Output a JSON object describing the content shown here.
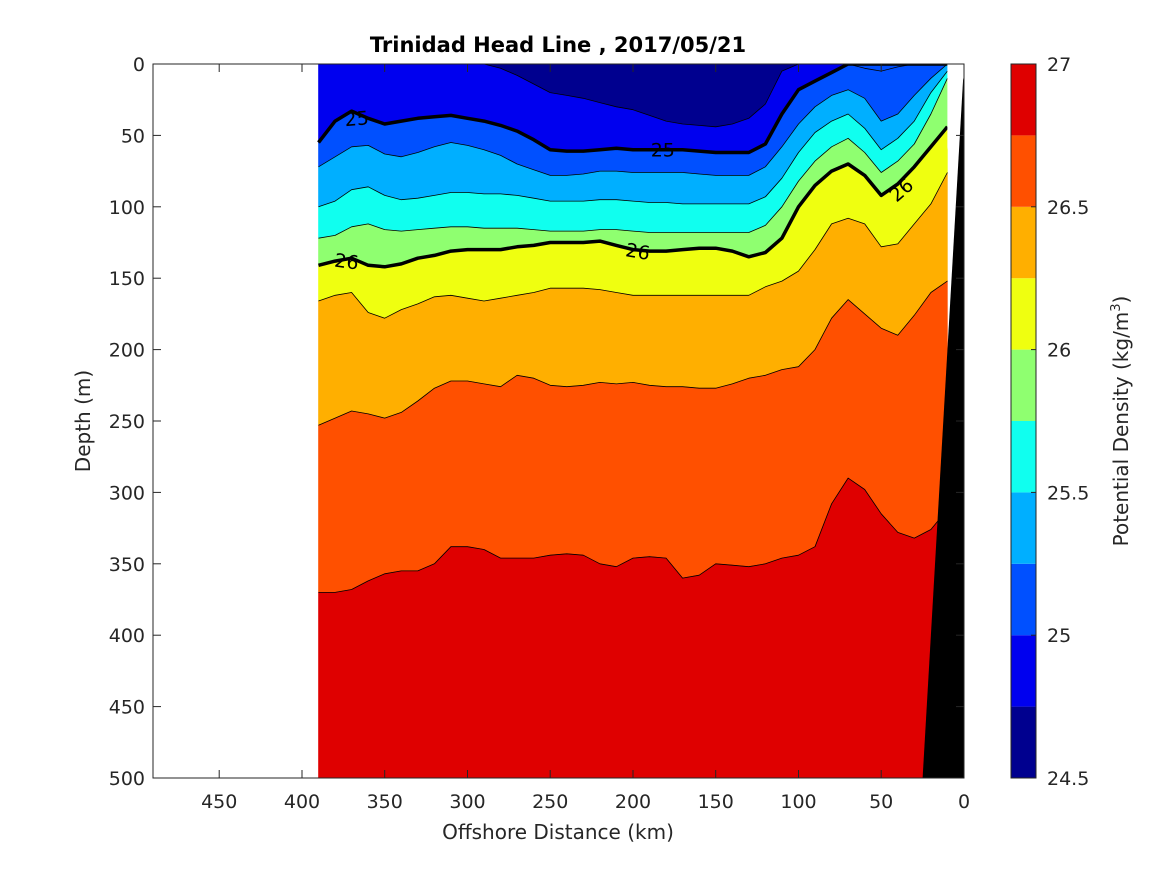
{
  "chart_data": {
    "type": "contourf",
    "title": "Trinidad Head Line , 2017/05/21",
    "xlabel": "Offshore Distance (km)",
    "ylabel": "Depth (m)",
    "colorbar_label": "Potential Density (kg/m",
    "colorbar_label_sup": "3",
    "colorbar_label_end": ")",
    "xlim": [
      490,
      0
    ],
    "ylim": [
      0,
      500
    ],
    "x_reversed": true,
    "y_reversed": true,
    "x_ticks": [
      450,
      400,
      350,
      300,
      250,
      200,
      150,
      100,
      50,
      0
    ],
    "y_ticks": [
      0,
      50,
      100,
      150,
      200,
      250,
      300,
      350,
      400,
      450,
      500
    ],
    "colorbar_ticks": [
      24.5,
      25,
      25.5,
      26,
      26.5,
      27
    ],
    "clim": [
      24.5,
      27
    ],
    "levels": [
      24.5,
      24.75,
      25,
      25.25,
      25.5,
      25.75,
      26,
      26.25,
      26.5,
      26.75,
      27
    ],
    "band_colors": [
      "#00008f",
      "#0000ef",
      "#0050ff",
      "#00afff",
      "#10ffef",
      "#8fff70",
      "#efff10",
      "#ffaf00",
      "#ff5000",
      "#df0000"
    ],
    "data_x_range": [
      390,
      10
    ],
    "bathymetry": {
      "color": "#000000",
      "surface_x": 0,
      "bottom_x": 25
    },
    "contour_x": [
      390,
      380,
      370,
      360,
      350,
      340,
      330,
      320,
      310,
      300,
      290,
      280,
      270,
      260,
      250,
      240,
      230,
      220,
      210,
      200,
      190,
      180,
      170,
      160,
      150,
      140,
      130,
      120,
      110,
      100,
      90,
      80,
      70,
      60,
      50,
      40,
      30,
      20,
      10
    ],
    "contours": [
      {
        "level": 24.75,
        "depths": [
          0,
          0,
          0,
          0,
          0,
          0,
          0,
          0,
          0,
          0,
          0,
          3,
          8,
          14,
          20,
          22,
          24,
          27,
          30,
          32,
          36,
          40,
          42,
          43,
          44,
          42,
          38,
          28,
          5,
          0,
          0,
          0,
          0,
          3,
          5,
          2,
          0,
          0,
          0
        ]
      },
      {
        "level": 25,
        "depths": [
          55,
          40,
          33,
          38,
          42,
          40,
          38,
          37,
          36,
          38,
          40,
          43,
          47,
          53,
          60,
          61,
          61,
          60,
          59,
          60,
          60,
          60,
          60,
          61,
          62,
          62,
          62,
          56,
          35,
          18,
          12,
          6,
          0,
          0,
          0,
          0,
          0,
          0,
          0
        ]
      },
      {
        "level": 25.25,
        "depths": [
          72,
          65,
          58,
          57,
          63,
          65,
          62,
          58,
          55,
          57,
          60,
          64,
          70,
          74,
          78,
          78,
          77,
          75,
          75,
          76,
          76,
          76,
          76,
          77,
          78,
          78,
          78,
          72,
          58,
          42,
          30,
          22,
          18,
          24,
          40,
          35,
          22,
          10,
          0
        ]
      },
      {
        "level": 25.5,
        "depths": [
          100,
          96,
          88,
          86,
          92,
          95,
          94,
          92,
          90,
          90,
          91,
          91,
          92,
          94,
          96,
          96,
          96,
          95,
          95,
          96,
          97,
          97,
          98,
          98,
          98,
          98,
          98,
          93,
          80,
          62,
          48,
          40,
          35,
          45,
          60,
          52,
          40,
          20,
          5
        ]
      },
      {
        "level": 25.75,
        "depths": [
          122,
          120,
          114,
          112,
          116,
          117,
          116,
          115,
          114,
          114,
          115,
          115,
          115,
          116,
          117,
          117,
          117,
          116,
          116,
          117,
          118,
          118,
          118,
          118,
          118,
          118,
          118,
          113,
          100,
          82,
          68,
          58,
          52,
          62,
          76,
          68,
          56,
          35,
          10
        ]
      },
      {
        "level": 26,
        "depths": [
          141,
          138,
          136,
          141,
          142,
          140,
          136,
          134,
          131,
          130,
          130,
          130,
          128,
          127,
          125,
          125,
          125,
          124,
          127,
          130,
          131,
          131,
          130,
          129,
          129,
          131,
          135,
          132,
          122,
          100,
          85,
          75,
          70,
          78,
          92,
          84,
          72,
          58,
          44
        ]
      },
      {
        "level": 26.25,
        "depths": [
          166,
          162,
          160,
          174,
          178,
          172,
          168,
          163,
          162,
          164,
          166,
          164,
          162,
          160,
          157,
          157,
          157,
          158,
          160,
          162,
          162,
          162,
          162,
          162,
          162,
          162,
          162,
          156,
          152,
          145,
          130,
          112,
          108,
          112,
          128,
          126,
          112,
          98,
          76
        ]
      },
      {
        "level": 26.5,
        "depths": [
          253,
          248,
          243,
          245,
          248,
          244,
          236,
          227,
          222,
          222,
          224,
          226,
          218,
          220,
          225,
          226,
          225,
          223,
          224,
          223,
          225,
          226,
          226,
          227,
          227,
          224,
          220,
          218,
          214,
          212,
          200,
          178,
          165,
          175,
          185,
          190,
          176,
          160,
          152
        ]
      },
      {
        "level": 26.75,
        "depths": [
          370,
          370,
          368,
          362,
          357,
          355,
          355,
          350,
          338,
          338,
          340,
          346,
          346,
          346,
          344,
          343,
          344,
          350,
          352,
          346,
          345,
          346,
          360,
          358,
          350,
          351,
          352,
          350,
          346,
          344,
          338,
          308,
          290,
          298,
          315,
          328,
          332,
          326,
          312
        ]
      }
    ],
    "contour_labels": [
      {
        "text": "25",
        "level": 25,
        "x": 367,
        "depth": 38
      },
      {
        "text": "25",
        "level": 25,
        "x": 182,
        "depth": 60
      },
      {
        "text": "26",
        "level": 26,
        "x": 373,
        "depth": 138
      },
      {
        "text": "26",
        "level": 26,
        "x": 197,
        "depth": 131
      },
      {
        "text": "26",
        "level": 26,
        "x": 38,
        "depth": 88
      }
    ]
  }
}
